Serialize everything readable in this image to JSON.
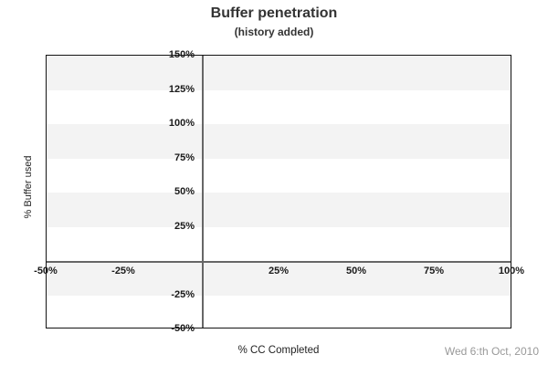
{
  "chart_data": {
    "type": "line",
    "title": "Buffer penetration",
    "subtitle": "(history added)",
    "xlabel": "% CC Completed",
    "ylabel": "% Buffer used",
    "footer_date": "Wed 6:th Oct, 2010",
    "xlim": [
      -50,
      100
    ],
    "ylim": [
      -50,
      150
    ],
    "x_ticks": [
      {
        "value": -50,
        "label": "-50%"
      },
      {
        "value": -25,
        "label": "-25%"
      },
      {
        "value": 25,
        "label": "25%"
      },
      {
        "value": 50,
        "label": "50%"
      },
      {
        "value": 75,
        "label": "75%"
      },
      {
        "value": 100,
        "label": "100%"
      }
    ],
    "y_ticks": [
      {
        "value": 150,
        "label": "150%"
      },
      {
        "value": 125,
        "label": "125%"
      },
      {
        "value": 100,
        "label": "100%"
      },
      {
        "value": 75,
        "label": "75%"
      },
      {
        "value": 50,
        "label": "50%"
      },
      {
        "value": 25,
        "label": "25%"
      },
      {
        "value": -25,
        "label": "-25%"
      },
      {
        "value": -50,
        "label": "-50%"
      }
    ],
    "shaded_bands": [
      {
        "from": 125,
        "to": 150
      },
      {
        "from": 75,
        "to": 100
      },
      {
        "from": 25,
        "to": 50
      },
      {
        "from": -25,
        "to": 0
      }
    ],
    "zero_axes": {
      "x": 0,
      "y": 0
    },
    "series": [],
    "legend": "none",
    "grid": "alternating horizontal shaded bands every 25%, zero axes drawn as gray lines",
    "colors": {
      "band": "#f3f3f3",
      "zero_axis": "#666666",
      "border": "#141414",
      "tick_text": "#1a1a1a",
      "title_text": "#333333",
      "label_text": "#222222",
      "footer_text": "#999999"
    }
  }
}
